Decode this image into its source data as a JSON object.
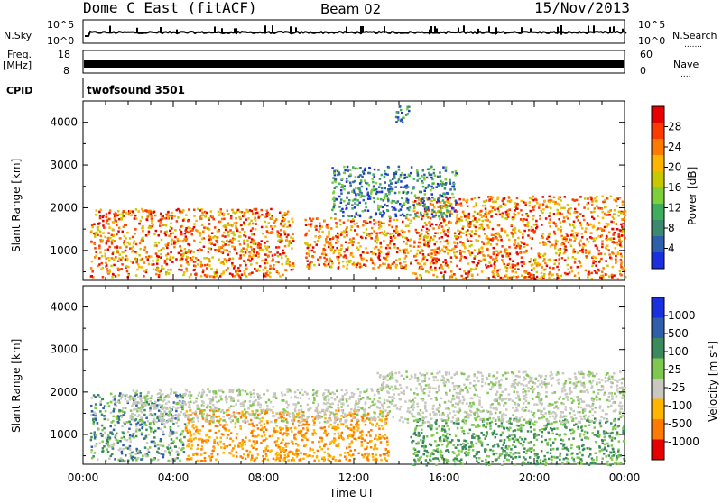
{
  "header": {
    "station": "Dome C East (fitACF)",
    "beam": "Beam 02",
    "date": "15/Nov/2013"
  },
  "strips": {
    "nsky": {
      "label": "N.Sky",
      "tick_hi": "10^5",
      "tick_lo": "10^0",
      "right_label": "N.Search",
      "right_tick_hi": "10^5",
      "right_tick_lo": "10^0"
    },
    "freq": {
      "label_top": "Freq.",
      "label_unit": "[MHz]",
      "tick_hi": "18",
      "tick_lo": "8",
      "right_label": "Nave",
      "right_tick_hi": "60",
      "right_tick_lo": "0"
    },
    "cpid": {
      "label": "CPID",
      "program": "twofsound 3501"
    }
  },
  "chart_data": [
    {
      "type": "heatmap",
      "panel": "power",
      "ylabel": "Slant Range [km]",
      "ylim": [
        300,
        4500
      ],
      "yticks": [
        "1000",
        "2000",
        "3000",
        "4000"
      ],
      "xlim_hours": [
        0,
        24
      ],
      "colorbar": {
        "label": "Power [dB]",
        "ticks": [
          "28",
          "24",
          "20",
          "16",
          "12",
          "8",
          "4"
        ],
        "colors": [
          "#e60000",
          "#ff3a00",
          "#ff7a00",
          "#ffb400",
          "#c8c800",
          "#7fcf3a",
          "#3fae5c",
          "#3b8a70",
          "#2d5faa",
          "#1a2fe0"
        ]
      },
      "regions": [
        {
          "t0": 0.3,
          "t1": 9.3,
          "r0": 400,
          "r1": 2000,
          "level": "high"
        },
        {
          "t0": 9.8,
          "t1": 14.5,
          "r0": 600,
          "r1": 1800,
          "level": "high"
        },
        {
          "t0": 14.6,
          "t1": 24,
          "r0": 350,
          "r1": 2300,
          "level": "high"
        },
        {
          "t0": 11,
          "t1": 16.5,
          "r0": 1800,
          "r1": 3000,
          "level": "low"
        },
        {
          "t0": 13.8,
          "t1": 14.6,
          "r0": 4000,
          "r1": 4400,
          "level": "low"
        }
      ]
    },
    {
      "type": "heatmap",
      "panel": "velocity",
      "ylabel": "Slant Range [km]",
      "ylim": [
        300,
        4500
      ],
      "yticks": [
        "1000",
        "2000",
        "3000",
        "4000"
      ],
      "xlim_hours": [
        0,
        24
      ],
      "colorbar": {
        "label": "Velocity [m s^-1]",
        "ticks": [
          "1000",
          "500",
          "100",
          "25",
          "-25",
          "-100",
          "-500",
          "-1000"
        ],
        "colors": [
          "#1a2fe0",
          "#2f5faa",
          "#3a8a5c",
          "#7ec850",
          "#c8c8c0",
          "#ffb400",
          "#ff7a00",
          "#e60000"
        ]
      },
      "regions": [
        {
          "t0": 0.3,
          "t1": 4.5,
          "r0": 400,
          "r1": 2000,
          "level": "mixed-green"
        },
        {
          "t0": 4.5,
          "t1": 13.5,
          "r0": 400,
          "r1": 1600,
          "level": "orange"
        },
        {
          "t0": 2,
          "t1": 13,
          "r0": 1300,
          "r1": 2100,
          "level": "gray"
        },
        {
          "t0": 14.5,
          "t1": 24,
          "r0": 300,
          "r1": 1400,
          "level": "green"
        },
        {
          "t0": 13,
          "t1": 24,
          "r0": 1300,
          "r1": 2500,
          "level": "gray"
        }
      ]
    }
  ],
  "xaxis": {
    "ticks": [
      "00:00",
      "04:00",
      "08:00",
      "12:00",
      "16:00",
      "20:00",
      "00:00"
    ],
    "label": "Time UT"
  }
}
